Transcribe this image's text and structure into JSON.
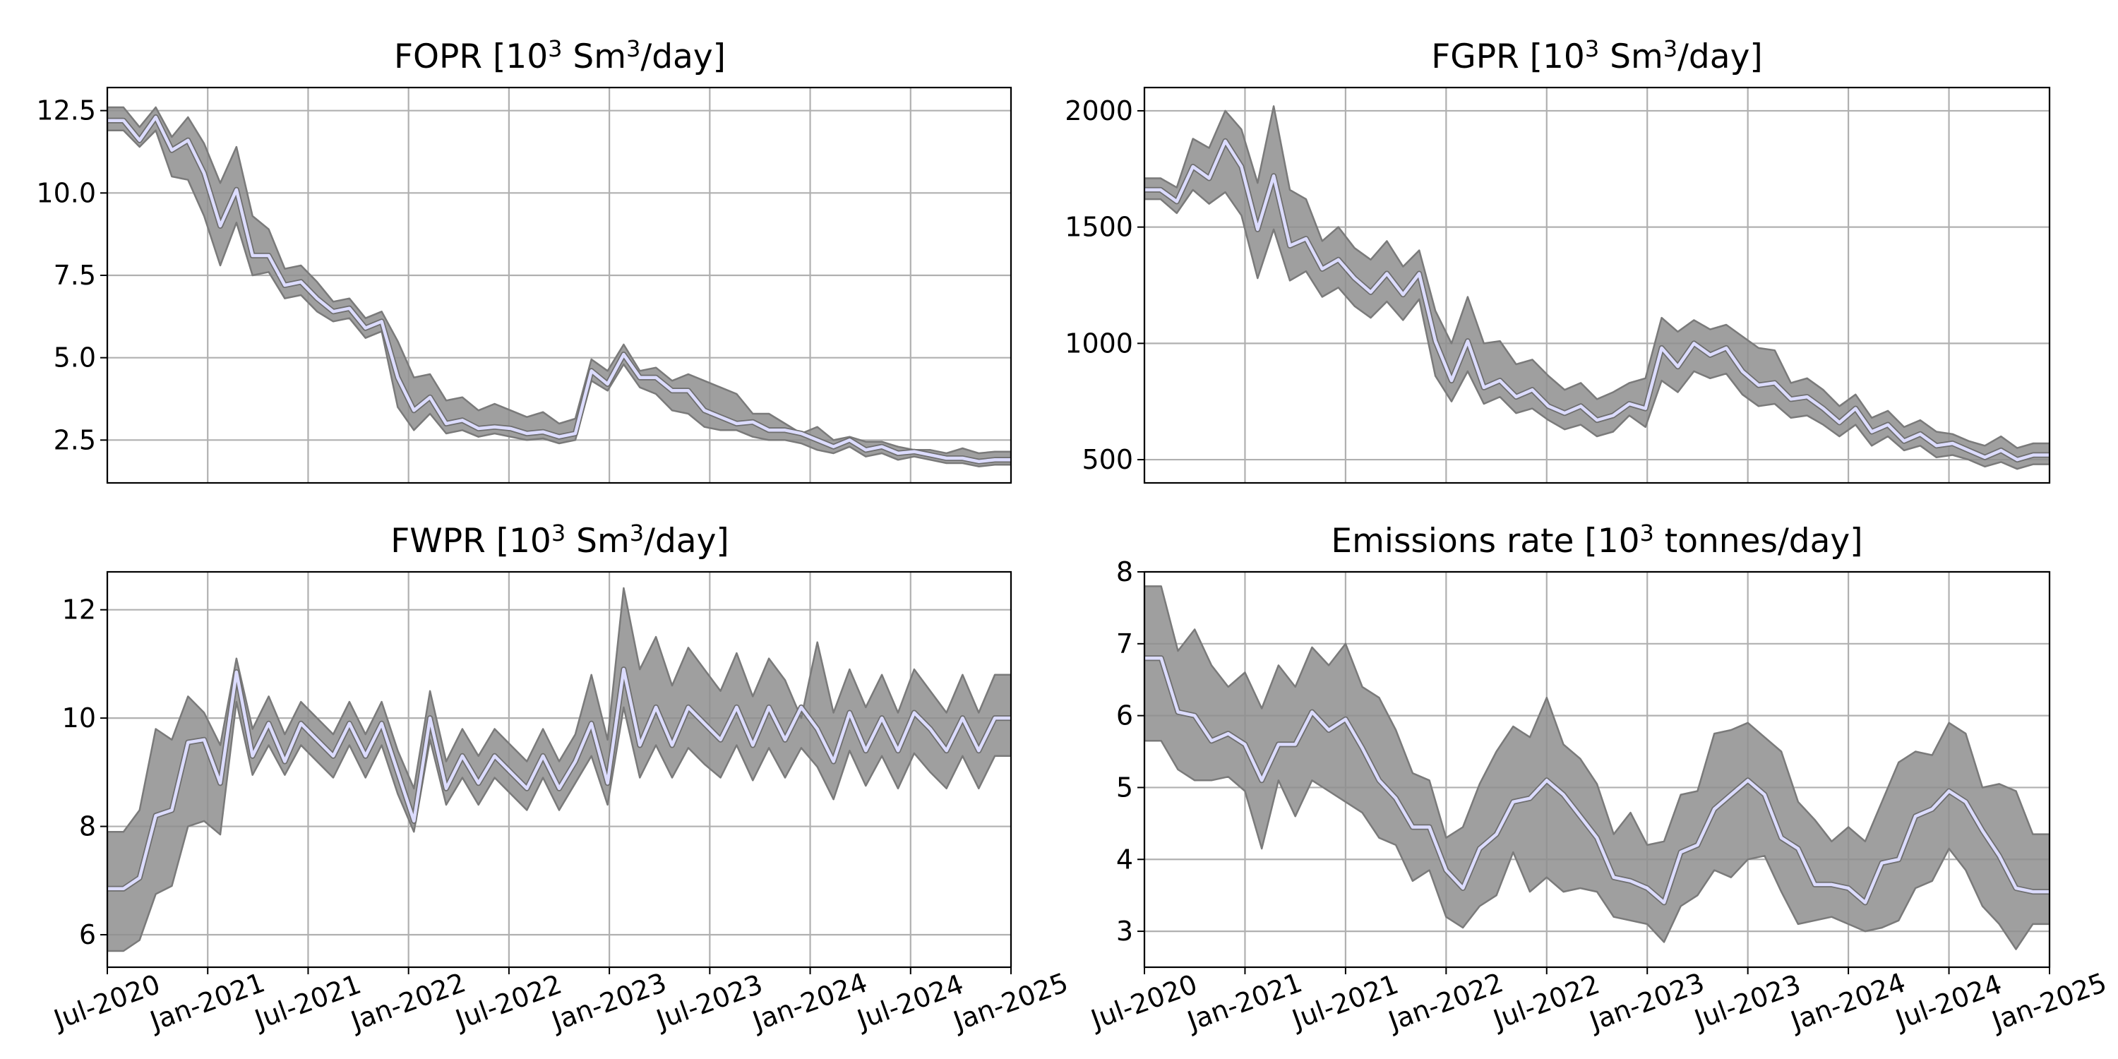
{
  "colors": {
    "band": "#8e8e8e",
    "mean": "#dcdcff",
    "grid": "#b0b0b0"
  },
  "x_ticks": [
    "Jul-2020",
    "Jan-2021",
    "Jul-2021",
    "Jan-2022",
    "Jul-2022",
    "Jan-2023",
    "Jul-2023",
    "Jan-2024",
    "Jul-2024",
    "Jan-2025"
  ],
  "x_start": "2020-07",
  "chart_data": [
    {
      "type": "area",
      "title_pre": "FOPR [10",
      "title_sup": "3",
      "title_mid": " Sm",
      "title_sup2": "3",
      "title_post": "/day]",
      "ylim": [
        1.2,
        13.2
      ],
      "yticks": [
        "2.5",
        "5.0",
        "7.5",
        "10.0",
        "12.5"
      ],
      "ytick_values": [
        2.5,
        5.0,
        7.5,
        10.0,
        12.5
      ],
      "grid": true,
      "show_xticks": false,
      "mean": [
        12.2,
        12.2,
        11.6,
        12.3,
        11.3,
        11.6,
        10.6,
        9.0,
        10.1,
        8.1,
        8.1,
        7.2,
        7.3,
        6.8,
        6.4,
        6.5,
        5.9,
        6.1,
        4.4,
        3.4,
        3.8,
        3.0,
        3.1,
        2.85,
        2.9,
        2.85,
        2.7,
        2.75,
        2.6,
        2.7,
        4.6,
        4.2,
        5.1,
        4.4,
        4.4,
        4.0,
        4.0,
        3.4,
        3.2,
        3.0,
        3.05,
        2.8,
        2.8,
        2.7,
        2.5,
        2.3,
        2.5,
        2.2,
        2.3,
        2.1,
        2.15,
        2.05,
        1.95,
        1.95,
        1.85,
        1.9,
        1.9
      ],
      "upper": [
        12.6,
        12.6,
        12.0,
        12.6,
        11.7,
        12.3,
        11.5,
        10.3,
        11.4,
        9.3,
        8.9,
        7.7,
        7.8,
        7.3,
        6.7,
        6.8,
        6.2,
        6.4,
        5.5,
        4.4,
        4.5,
        3.7,
        3.8,
        3.4,
        3.6,
        3.4,
        3.2,
        3.35,
        3.0,
        3.15,
        4.95,
        4.6,
        5.4,
        4.6,
        4.7,
        4.3,
        4.5,
        4.3,
        4.1,
        3.9,
        3.3,
        3.3,
        3.0,
        2.7,
        2.9,
        2.5,
        2.6,
        2.45,
        2.45,
        2.3,
        2.2,
        2.2,
        2.1,
        2.25,
        2.1,
        2.15,
        2.15
      ],
      "lower": [
        11.9,
        11.9,
        11.4,
        11.9,
        10.5,
        10.4,
        9.3,
        7.8,
        9.1,
        7.5,
        7.6,
        6.8,
        6.9,
        6.4,
        6.1,
        6.2,
        5.6,
        5.8,
        3.5,
        2.8,
        3.3,
        2.7,
        2.8,
        2.6,
        2.7,
        2.6,
        2.5,
        2.55,
        2.4,
        2.5,
        4.3,
        4.0,
        4.8,
        4.1,
        3.9,
        3.4,
        3.3,
        2.9,
        2.8,
        2.8,
        2.6,
        2.5,
        2.5,
        2.4,
        2.2,
        2.1,
        2.3,
        2.0,
        2.1,
        1.9,
        2.0,
        1.9,
        1.8,
        1.8,
        1.7,
        1.75,
        1.75
      ]
    },
    {
      "type": "area",
      "title_pre": "FGPR [10",
      "title_sup": "3",
      "title_mid": " Sm",
      "title_sup2": "3",
      "title_post": "/day]",
      "ylim": [
        400,
        2100
      ],
      "yticks": [
        "500",
        "1000",
        "1500",
        "2000"
      ],
      "ytick_values": [
        500,
        1000,
        1500,
        2000
      ],
      "grid": true,
      "show_xticks": false,
      "mean": [
        1660,
        1660,
        1610,
        1760,
        1710,
        1870,
        1760,
        1490,
        1720,
        1420,
        1450,
        1320,
        1360,
        1280,
        1220,
        1300,
        1210,
        1300,
        1010,
        840,
        1010,
        810,
        840,
        770,
        800,
        730,
        700,
        730,
        670,
        690,
        740,
        720,
        980,
        900,
        1000,
        950,
        980,
        880,
        820,
        830,
        760,
        770,
        720,
        660,
        720,
        620,
        650,
        580,
        610,
        560,
        570,
        540,
        510,
        540,
        500,
        520,
        520
      ],
      "upper": [
        1710,
        1710,
        1670,
        1880,
        1840,
        2000,
        1920,
        1690,
        2020,
        1660,
        1620,
        1440,
        1500,
        1410,
        1360,
        1440,
        1330,
        1400,
        1140,
        1000,
        1200,
        1000,
        1010,
        910,
        930,
        860,
        800,
        830,
        760,
        790,
        830,
        850,
        1110,
        1050,
        1100,
        1060,
        1080,
        1030,
        980,
        970,
        830,
        850,
        800,
        730,
        780,
        680,
        710,
        640,
        670,
        620,
        610,
        580,
        560,
        600,
        550,
        570,
        570
      ],
      "lower": [
        1620,
        1620,
        1560,
        1660,
        1600,
        1650,
        1550,
        1280,
        1490,
        1270,
        1310,
        1200,
        1240,
        1160,
        1110,
        1180,
        1100,
        1190,
        860,
        750,
        880,
        740,
        770,
        700,
        720,
        670,
        630,
        650,
        600,
        620,
        690,
        640,
        840,
        790,
        880,
        850,
        870,
        780,
        730,
        740,
        680,
        690,
        650,
        600,
        650,
        560,
        600,
        540,
        560,
        510,
        520,
        500,
        470,
        490,
        460,
        480,
        480
      ]
    },
    {
      "type": "area",
      "title_pre": "FWPR [10",
      "title_sup": "3",
      "title_mid": " Sm",
      "title_sup2": "3",
      "title_post": "/day]",
      "ylim": [
        5.4,
        12.7
      ],
      "yticks": [
        "6",
        "8",
        "10",
        "12"
      ],
      "ytick_values": [
        6,
        8,
        10,
        12
      ],
      "grid": true,
      "show_xticks": true,
      "mean": [
        6.85,
        6.85,
        7.05,
        8.2,
        8.3,
        9.55,
        9.6,
        8.8,
        10.85,
        9.3,
        9.9,
        9.2,
        9.9,
        9.6,
        9.3,
        9.9,
        9.3,
        9.9,
        9.0,
        8.1,
        10.0,
        8.7,
        9.3,
        8.8,
        9.3,
        9.0,
        8.7,
        9.3,
        8.7,
        9.2,
        9.9,
        8.8,
        10.9,
        9.5,
        10.2,
        9.5,
        10.2,
        9.9,
        9.6,
        10.2,
        9.5,
        10.2,
        9.6,
        10.2,
        9.8,
        9.2,
        10.1,
        9.4,
        10.0,
        9.4,
        10.1,
        9.8,
        9.4,
        10.0,
        9.4,
        10.0,
        10.0
      ],
      "upper": [
        7.9,
        7.9,
        8.3,
        9.8,
        9.6,
        10.4,
        10.1,
        9.5,
        11.1,
        9.8,
        10.4,
        9.7,
        10.3,
        10.0,
        9.7,
        10.3,
        9.7,
        10.3,
        9.4,
        8.7,
        10.5,
        9.2,
        9.8,
        9.3,
        9.8,
        9.5,
        9.2,
        9.8,
        9.2,
        9.7,
        10.8,
        9.6,
        12.4,
        10.9,
        11.5,
        10.6,
        11.3,
        10.9,
        10.5,
        11.2,
        10.4,
        11.1,
        10.7,
        10.0,
        11.4,
        10.1,
        10.9,
        10.2,
        10.8,
        10.1,
        10.9,
        10.5,
        10.1,
        10.8,
        10.1,
        10.8,
        10.8
      ],
      "lower": [
        5.7,
        5.7,
        5.9,
        6.75,
        6.9,
        8.0,
        8.1,
        7.85,
        10.3,
        8.95,
        9.5,
        8.95,
        9.5,
        9.2,
        8.9,
        9.5,
        8.9,
        9.5,
        8.6,
        7.9,
        9.6,
        8.4,
        8.9,
        8.4,
        8.9,
        8.6,
        8.3,
        8.9,
        8.3,
        8.8,
        9.3,
        8.4,
        10.2,
        8.9,
        9.5,
        8.9,
        9.45,
        9.15,
        8.9,
        9.5,
        8.85,
        9.45,
        8.9,
        9.45,
        9.1,
        8.5,
        9.4,
        8.75,
        9.3,
        8.7,
        9.35,
        9.0,
        8.7,
        9.3,
        8.7,
        9.3,
        9.3
      ]
    },
    {
      "type": "area",
      "title_pre": "Emissions rate [10",
      "title_sup": "3",
      "title_mid": " tonnes/day]",
      "title_sup2": "",
      "title_post": "",
      "ylim": [
        2.5,
        8.0
      ],
      "yticks": [
        "3",
        "4",
        "5",
        "6",
        "7",
        "8"
      ],
      "ytick_values": [
        3,
        4,
        5,
        6,
        7,
        8
      ],
      "grid": true,
      "show_xticks": true,
      "mean": [
        6.8,
        6.8,
        6.05,
        6.0,
        5.65,
        5.75,
        5.6,
        5.1,
        5.6,
        5.6,
        6.05,
        5.8,
        5.95,
        5.55,
        5.1,
        4.85,
        4.45,
        4.45,
        3.85,
        3.6,
        4.15,
        4.35,
        4.8,
        4.85,
        5.1,
        4.9,
        4.6,
        4.3,
        3.75,
        3.7,
        3.6,
        3.4,
        4.1,
        4.2,
        4.7,
        4.9,
        5.1,
        4.9,
        4.3,
        4.15,
        3.65,
        3.65,
        3.6,
        3.4,
        3.95,
        4.0,
        4.6,
        4.7,
        4.95,
        4.8,
        4.4,
        4.05,
        3.6,
        3.55,
        3.55
      ],
      "upper": [
        7.8,
        7.8,
        6.9,
        7.2,
        6.7,
        6.4,
        6.6,
        6.1,
        6.7,
        6.4,
        6.95,
        6.7,
        7.0,
        6.4,
        6.25,
        5.8,
        5.2,
        5.1,
        4.3,
        4.45,
        5.05,
        5.5,
        5.85,
        5.7,
        6.25,
        5.6,
        5.4,
        5.05,
        4.35,
        4.65,
        4.2,
        4.25,
        4.9,
        4.95,
        5.75,
        5.8,
        5.9,
        5.7,
        5.5,
        4.8,
        4.55,
        4.25,
        4.45,
        4.25,
        4.8,
        5.35,
        5.5,
        5.45,
        5.9,
        5.75,
        5.0,
        5.05,
        4.95,
        4.35,
        4.35
      ],
      "lower": [
        5.65,
        5.65,
        5.25,
        5.1,
        5.1,
        5.15,
        4.95,
        4.15,
        5.1,
        4.6,
        5.1,
        4.95,
        4.8,
        4.65,
        4.3,
        4.2,
        3.7,
        3.85,
        3.2,
        3.05,
        3.35,
        3.5,
        4.1,
        3.55,
        3.75,
        3.55,
        3.6,
        3.55,
        3.2,
        3.15,
        3.1,
        2.85,
        3.35,
        3.5,
        3.85,
        3.75,
        4.0,
        4.05,
        3.55,
        3.1,
        3.15,
        3.2,
        3.1,
        3.0,
        3.05,
        3.15,
        3.6,
        3.7,
        4.15,
        3.85,
        3.35,
        3.1,
        2.75,
        3.1,
        3.1
      ]
    }
  ]
}
